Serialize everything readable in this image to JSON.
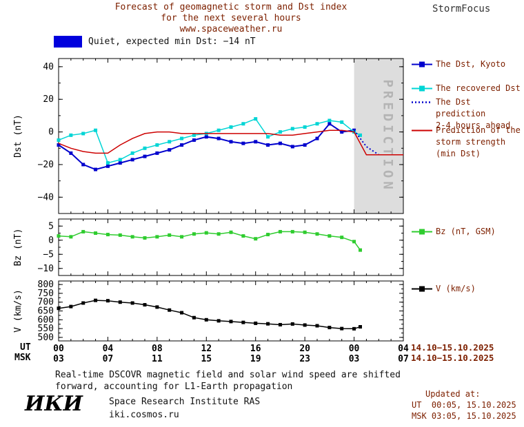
{
  "header": {
    "title_line1": "Forecast of geomagnetic storm and Dst index",
    "title_line2": "for the next several hours",
    "title_line3": "www.spaceweather.ru",
    "brand": "StormFocus"
  },
  "status": {
    "label": "Quiet, expected min Dst: −14 nT",
    "swatch_color": "#0000dd"
  },
  "axis": {
    "ut_label": "UT",
    "msk_label": "MSK",
    "ut_ticks": [
      "00",
      "04",
      "08",
      "12",
      "16",
      "20",
      "00",
      "04"
    ],
    "msk_ticks": [
      "03",
      "07",
      "11",
      "15",
      "19",
      "23",
      "03",
      "07"
    ],
    "dates": [
      "14.10−15.10.2025",
      "14.10−15.10.2025"
    ]
  },
  "legend": {
    "dst": [
      {
        "color": "#0000cd",
        "style": "solid-square",
        "label_lines": [
          "The Dst, Kyoto"
        ]
      },
      {
        "color": "#00d5d5",
        "style": "solid-square",
        "label_lines": [
          "The recovered Dst"
        ]
      },
      {
        "color": "#0000cd",
        "style": "dotted",
        "label_lines": [
          "The Dst prediction",
          "2-4 hours ahead"
        ]
      },
      {
        "color": "#cd0000",
        "style": "solid",
        "label_lines": [
          "Prediction of the",
          "storm strength",
          "(min Dst)"
        ]
      }
    ],
    "bz": {
      "color": "#2fcc2f",
      "label": "Bz (nT, GSM)"
    },
    "v": {
      "color": "#000000",
      "label": "V (km/s)"
    }
  },
  "footer": {
    "note_line1": "Real-time DSCOVR magnetic field and solar wind speed are shifted",
    "note_line2": "forward, accounting for L1-Earth propagation",
    "updated_label": "Updated at:",
    "updated_ut": "UT  00:05, 15.10.2025",
    "updated_msk": "MSK 03:05, 15.10.2025",
    "logo": "ИКИ",
    "institute": "Space Research Institute RAS",
    "institute_url": "iki.cosmos.ru"
  },
  "chart_data": [
    {
      "id": "dst",
      "type": "line",
      "title": "Forecast of geomagnetic storm and Dst index",
      "ylabel": "Dst (nT)",
      "xlim": [
        0,
        28
      ],
      "xticks": [
        0,
        4,
        8,
        12,
        16,
        20,
        24,
        28
      ],
      "ylim": [
        -50,
        45
      ],
      "yticks": [
        40,
        20,
        0,
        -20,
        -40
      ],
      "ytick_labels": [
        "40",
        "20",
        "0",
        "−20",
        "−40"
      ],
      "yminor": 10,
      "band": {
        "from": 24,
        "to": 28,
        "label": "PREDICTION"
      },
      "legend_position": "right",
      "series": [
        {
          "name": "The Dst, Kyoto",
          "color": "#0000cd",
          "marker": "square",
          "width": 2,
          "x": [
            0,
            1,
            2,
            3,
            4,
            5,
            6,
            7,
            8,
            9,
            10,
            11,
            12,
            13,
            14,
            15,
            16,
            17,
            18,
            19,
            20,
            21,
            22,
            23,
            24
          ],
          "y": [
            -8,
            -13,
            -20,
            -23,
            -21,
            -19,
            -17,
            -15,
            -13,
            -11,
            -8,
            -5,
            -3,
            -4,
            -6,
            -7,
            -6,
            -8,
            -7,
            -9,
            -8,
            -4,
            5,
            0,
            1
          ]
        },
        {
          "name": "The recovered Dst",
          "color": "#00d5d5",
          "marker": "square",
          "width": 1.5,
          "x": [
            0,
            1,
            2,
            3,
            4,
            5,
            6,
            7,
            8,
            9,
            10,
            11,
            12,
            13,
            14,
            15,
            16,
            17,
            18,
            19,
            20,
            21,
            22,
            23,
            24,
            24.5
          ],
          "y": [
            -5,
            -2,
            -1,
            1,
            -19,
            -17,
            -13,
            -10,
            -8,
            -6,
            -4,
            -2,
            -1,
            1,
            3,
            5,
            8,
            -3,
            0,
            2,
            3,
            5,
            7,
            6,
            0,
            -2
          ]
        },
        {
          "name": "The Dst prediction 2-4 hours ahead",
          "color": "#0000cd",
          "style": "dotted",
          "width": 2,
          "x": [
            24,
            25,
            26
          ],
          "y": [
            1,
            -9,
            -14
          ]
        },
        {
          "name": "Prediction of the storm strength (min Dst)",
          "color": "#cd0000",
          "width": 1.5,
          "x": [
            0,
            1,
            2,
            3,
            4,
            5,
            6,
            7,
            8,
            9,
            10,
            11,
            12,
            13,
            14,
            15,
            16,
            17,
            18,
            19,
            20,
            21,
            22,
            23,
            24,
            25,
            28
          ],
          "y": [
            -7,
            -10,
            -12,
            -13,
            -13,
            -8,
            -4,
            -1,
            0,
            0,
            -1,
            -1,
            -1,
            -1,
            -1,
            -1,
            -1,
            -1,
            -2,
            -2,
            -1,
            0,
            1,
            1,
            0,
            -14,
            -14
          ]
        }
      ]
    },
    {
      "id": "bz",
      "type": "line",
      "ylabel": "Bz (nT)",
      "xlim": [
        0,
        28
      ],
      "xticks": [
        0,
        4,
        8,
        12,
        16,
        20,
        24,
        28
      ],
      "ylim": [
        -12.5,
        7.5
      ],
      "yticks": [
        5,
        0,
        -5,
        -10
      ],
      "ytick_labels": [
        "5",
        "0",
        "−5",
        "−10"
      ],
      "yminor": 2.5,
      "series": [
        {
          "name": "Bz (nT, GSM)",
          "color": "#2fcc2f",
          "marker": "square",
          "width": 1.5,
          "x": [
            0,
            1,
            2,
            3,
            4,
            5,
            6,
            7,
            8,
            9,
            10,
            11,
            12,
            13,
            14,
            15,
            16,
            17,
            18,
            19,
            20,
            21,
            22,
            23,
            24,
            24.5
          ],
          "y": [
            1.5,
            1.2,
            3,
            2.5,
            2,
            1.8,
            1.2,
            0.8,
            1.2,
            1.8,
            1.2,
            2.2,
            2.6,
            2.2,
            2.8,
            1.5,
            0.5,
            2,
            3,
            3,
            2.8,
            2.2,
            1.5,
            1,
            -0.5,
            -3.5
          ]
        }
      ]
    },
    {
      "id": "v",
      "type": "line",
      "ylabel": "V (km/s)",
      "xlim": [
        0,
        28
      ],
      "xticks": [
        0,
        4,
        8,
        12,
        16,
        20,
        24,
        28
      ],
      "ylim": [
        480,
        820
      ],
      "yticks": [
        800,
        750,
        700,
        650,
        600,
        550,
        500
      ],
      "ytick_labels": [
        "800",
        "750",
        "700",
        "650",
        "600",
        "550",
        "500"
      ],
      "yminor": 25,
      "series": [
        {
          "name": "V (km/s)",
          "color": "#000000",
          "marker": "square",
          "width": 1.5,
          "x": [
            0,
            1,
            2,
            3,
            4,
            5,
            6,
            7,
            8,
            9,
            10,
            11,
            12,
            13,
            14,
            15,
            16,
            17,
            18,
            19,
            20,
            21,
            22,
            23,
            24,
            24.5
          ],
          "y": [
            665,
            675,
            695,
            710,
            708,
            700,
            695,
            685,
            672,
            655,
            640,
            612,
            600,
            594,
            590,
            585,
            580,
            577,
            572,
            576,
            570,
            566,
            556,
            550,
            549,
            560
          ]
        }
      ]
    }
  ]
}
